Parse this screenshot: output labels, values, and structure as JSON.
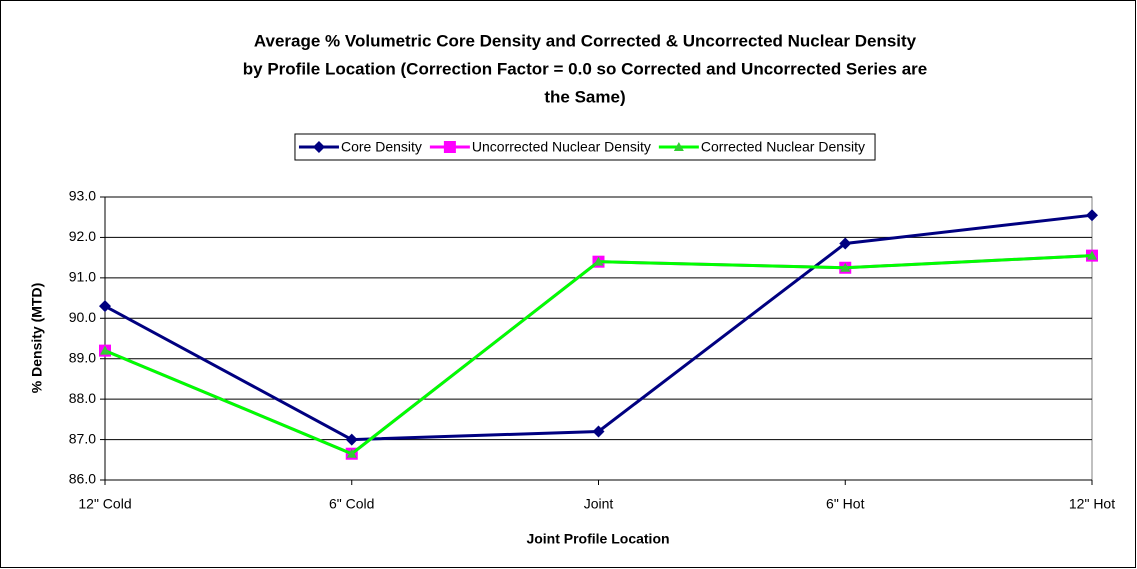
{
  "chart_data": {
    "type": "line",
    "title": [
      "Average % Volumetric Core Density and Corrected & Uncorrected Nuclear Density",
      "by Profile Location (Correction Factor = 0.0 so Corrected and Uncorrected Series are",
      "the Same)"
    ],
    "x_label": "Joint Profile Location",
    "y_label": "% Density (MTD)",
    "categories": [
      "12\" Cold",
      "6\" Cold",
      "Joint",
      "6\" Hot",
      "12\" Hot"
    ],
    "series": [
      {
        "name": "Core Density",
        "color": "#000080",
        "marker": "diamond",
        "values": [
          90.3,
          87.0,
          87.2,
          91.85,
          92.55
        ]
      },
      {
        "name": "Uncorrected Nuclear Density",
        "color": "#ff00ff",
        "marker": "square",
        "values": [
          89.2,
          86.65,
          91.4,
          91.25,
          91.55
        ]
      },
      {
        "name": "Corrected Nuclear Density",
        "color": "#00ff00",
        "marker": "triangle",
        "values": [
          89.2,
          86.65,
          91.4,
          91.25,
          91.55
        ]
      }
    ],
    "ylim": [
      86,
      93
    ],
    "yticks": [
      {
        "value": 86,
        "label": "86.0"
      },
      {
        "value": 87,
        "label": "87.0"
      },
      {
        "value": 88,
        "label": "88.0"
      },
      {
        "value": 89,
        "label": "89.0"
      },
      {
        "value": 90,
        "label": "90.0"
      },
      {
        "value": 91,
        "label": "91.0"
      },
      {
        "value": 92,
        "label": "92.0"
      },
      {
        "value": 93,
        "label": "93.0"
      }
    ],
    "grid": true,
    "legend": "top"
  }
}
